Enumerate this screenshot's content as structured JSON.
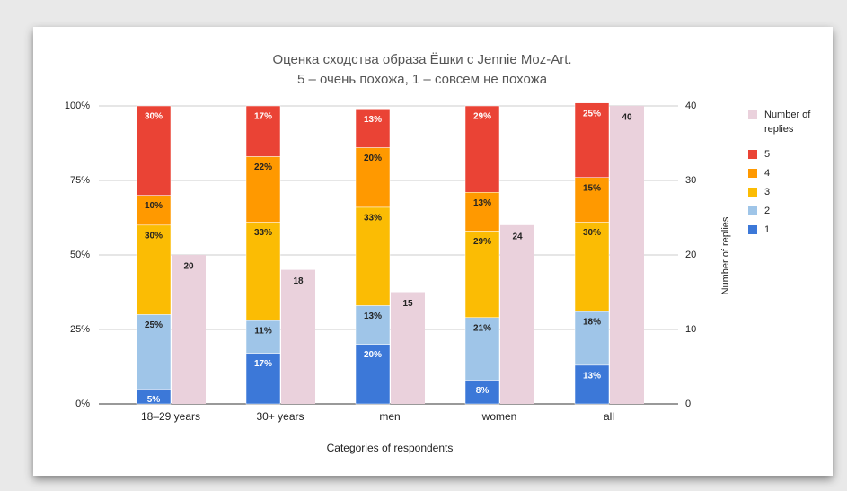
{
  "chart_data": {
    "type": "bar",
    "stacked": true,
    "title": "Оценка сходства образа Ёшки с Jennie Moz-Art.",
    "subtitle": "5 – очень похожа, 1 – совсем не похожа",
    "x_label": "Categories of respondents",
    "y2_label": "Number of replies",
    "categories": [
      "18–29 years",
      "30+ years",
      "men",
      "women",
      "all"
    ],
    "series": [
      {
        "name": "1",
        "color": "#3c78d8",
        "values": [
          5,
          17,
          20,
          8,
          13
        ],
        "value_labels": [
          "5%",
          "17%",
          "20%",
          "8%",
          "13%"
        ]
      },
      {
        "name": "2",
        "color": "#9fc5e8",
        "values": [
          25,
          11,
          13,
          21,
          18
        ],
        "value_labels": [
          "25%",
          "11%",
          "13%",
          "21%",
          "18%"
        ]
      },
      {
        "name": "3",
        "color": "#fbbc04",
        "values": [
          30,
          33,
          33,
          29,
          30
        ],
        "value_labels": [
          "30%",
          "33%",
          "33%",
          "29%",
          "30%"
        ]
      },
      {
        "name": "4",
        "color": "#ff9900",
        "values": [
          10,
          22,
          20,
          13,
          15
        ],
        "value_labels": [
          "10%",
          "22%",
          "20%",
          "13%",
          "15%"
        ]
      },
      {
        "name": "5",
        "color": "#ea4335",
        "values": [
          30,
          17,
          13,
          29,
          25
        ],
        "value_labels": [
          "30%",
          "17%",
          "13%",
          "29%",
          "25%"
        ]
      },
      {
        "name": "Number of replies",
        "color": "#ead1dc",
        "axis": "y2",
        "values": [
          20,
          18,
          15,
          24,
          40
        ]
      }
    ],
    "ylim": [
      0,
      100
    ],
    "yticks": [
      {
        "value": 0,
        "label": "0%"
      },
      {
        "value": 25,
        "label": "25%"
      },
      {
        "value": 50,
        "label": "50%"
      },
      {
        "value": 75,
        "label": "75%"
      },
      {
        "value": 100,
        "label": "100%"
      }
    ],
    "y2lim": [
      0,
      40
    ],
    "y2ticks": [
      0,
      10,
      20,
      30,
      40
    ],
    "grid": true,
    "legend": "right"
  }
}
